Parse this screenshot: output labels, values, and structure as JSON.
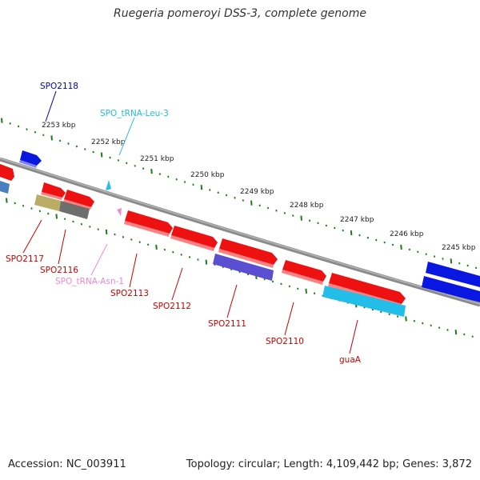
{
  "header": {
    "title": "Ruegeria pomeroyi DSS-3, complete genome"
  },
  "footer": {
    "accession": "Accession: NC_003911",
    "summary": "Topology: circular; Length: 4,109,442 bp; Genes: 3,872"
  },
  "colors": {
    "backbone": "#8a8a8a",
    "ticks": "#1d7a1d",
    "forward_gene": "#ee1111",
    "reverse_gene": "#0a17e0",
    "rrna_blue": "#5a4fd0",
    "cyan": "#22bde8",
    "tan": "#b9ad66",
    "grey_gene": "#6e6e6e",
    "pink": "#f08ad0"
  },
  "scale_labels": [
    "2253 kbp",
    "2252 kbp",
    "2251 kbp",
    "2250 kbp",
    "2249 kbp",
    "2248 kbp",
    "2247 kbp",
    "2246 kbp",
    "2245 kbp"
  ],
  "gene_labels": [
    {
      "name": "SPO2118",
      "color": "#0000bb"
    },
    {
      "name": "SPO_tRNA-Leu-3",
      "color": "#22bbdd"
    },
    {
      "name": "SPO2117",
      "color": "#cc0000"
    },
    {
      "name": "SPO2116",
      "color": "#cc0000"
    },
    {
      "name": "SPO_tRNA-Asn-1",
      "color": "#ee88cc"
    },
    {
      "name": "SPO2113",
      "color": "#cc0000"
    },
    {
      "name": "SPO2112",
      "color": "#cc0000"
    },
    {
      "name": "SPO2111",
      "color": "#cc0000"
    },
    {
      "name": "SPO2110",
      "color": "#cc0000"
    },
    {
      "name": "guaA",
      "color": "#cc0000"
    }
  ]
}
